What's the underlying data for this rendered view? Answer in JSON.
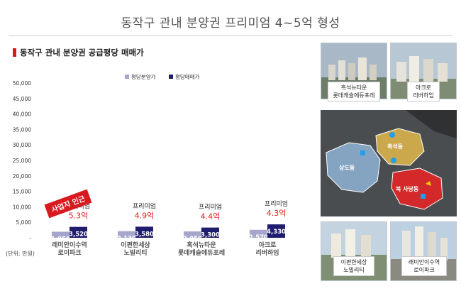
{
  "header": {
    "title": "동작구 관내 분양권 프리미엄 4~5억 형성",
    "section_title": "동작구 관내 분양권 공급평당 매매가"
  },
  "unit_note": "(단위: 만원)",
  "stamp_text": "사업지 인근",
  "premium_label": "프리미엄",
  "premiums": [
    "5.3억",
    "4.9억",
    "4.4억",
    "4.3억"
  ],
  "colors": {
    "supply": "#a6a6cc",
    "trade": "#1f1d6e",
    "premium": "#e02020",
    "stamp": "#d71920"
  },
  "chart_data": {
    "type": "bar",
    "categories": [
      "래미안이수역 로이파크",
      "이편한세상 노빌리티",
      "흑석뉴타운 롯데캐슬에듀포레",
      "아크로 리버하임"
    ],
    "series": [
      {
        "name": "평당분양가",
        "values": [
          1950,
          2130,
          2050,
          2570
        ]
      },
      {
        "name": "평당매매가",
        "values": [
          3520,
          3580,
          3300,
          4330
        ]
      }
    ],
    "ylim": [
      0,
      50000
    ],
    "yticks": [
      "-",
      "5,000",
      "10,000",
      "15,000",
      "20,000",
      "25,000",
      "30,000",
      "35,000",
      "40,000",
      "45,000",
      "50,000"
    ],
    "legend_position": "top-center",
    "grid": false
  },
  "photos": {
    "top_left_caption": [
      "흑석뉴타운",
      "롯데캐슬에듀포레"
    ],
    "top_right_caption": [
      "아크로",
      "리버하임"
    ],
    "bottom_left_caption": [
      "이편한세상",
      "노빌리티"
    ],
    "bottom_right_caption": [
      "래미안이수역",
      "로이파크"
    ]
  },
  "map": {
    "label_sangdo": "상도동",
    "label_heukseok": "흑석동",
    "label_sadang": "북 사당동"
  }
}
